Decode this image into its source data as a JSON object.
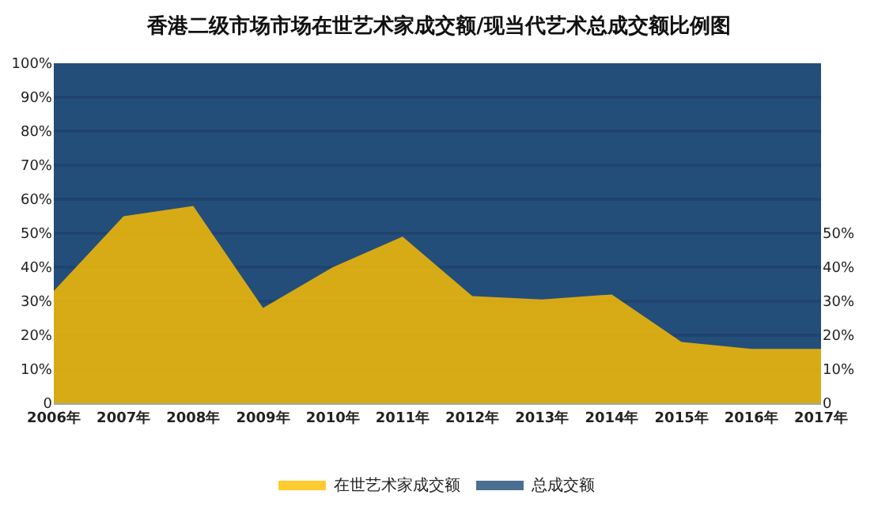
{
  "chart_data": {
    "type": "area",
    "title": "香港二级市场市场在世艺术家成交额/现当代艺术总成交额比例图",
    "categories": [
      "2006年",
      "2007年",
      "2008年",
      "2009年",
      "2010年",
      "2011年",
      "2012年",
      "2013年",
      "2014年",
      "2015年",
      "2016年",
      "2017年"
    ],
    "series": [
      {
        "name": "在世艺术家成交额",
        "color": "#ffc000",
        "values": [
          33,
          55,
          58,
          28,
          40,
          49,
          31.5,
          30.5,
          32,
          18,
          16,
          16
        ]
      },
      {
        "name": "总成交额",
        "color": "#254e7a",
        "values": [
          100,
          100,
          100,
          100,
          100,
          100,
          100,
          100,
          100,
          100,
          100,
          100
        ]
      }
    ],
    "ylim": [
      0,
      100
    ],
    "yticks": [
      {
        "value": 0,
        "label": "0"
      },
      {
        "value": 10,
        "label": "10%"
      },
      {
        "value": 20,
        "label": "20%"
      },
      {
        "value": 30,
        "label": "30%"
      },
      {
        "value": 40,
        "label": "40%"
      },
      {
        "value": 50,
        "label": "50%"
      },
      {
        "value": 60,
        "label": "60%"
      },
      {
        "value": 70,
        "label": "70%"
      },
      {
        "value": 80,
        "label": "80%"
      },
      {
        "value": 90,
        "label": "90%"
      },
      {
        "value": 100,
        "label": "100%"
      }
    ],
    "y2lim": [
      0,
      100
    ],
    "y2ticks": [
      {
        "value": 0,
        "label": "0"
      },
      {
        "value": 10,
        "label": "10%"
      },
      {
        "value": 20,
        "label": "20%"
      },
      {
        "value": 30,
        "label": "30%"
      },
      {
        "value": 40,
        "label": "40%"
      },
      {
        "value": 50,
        "label": "50%"
      }
    ],
    "grid": "y",
    "legend": "bottom"
  }
}
